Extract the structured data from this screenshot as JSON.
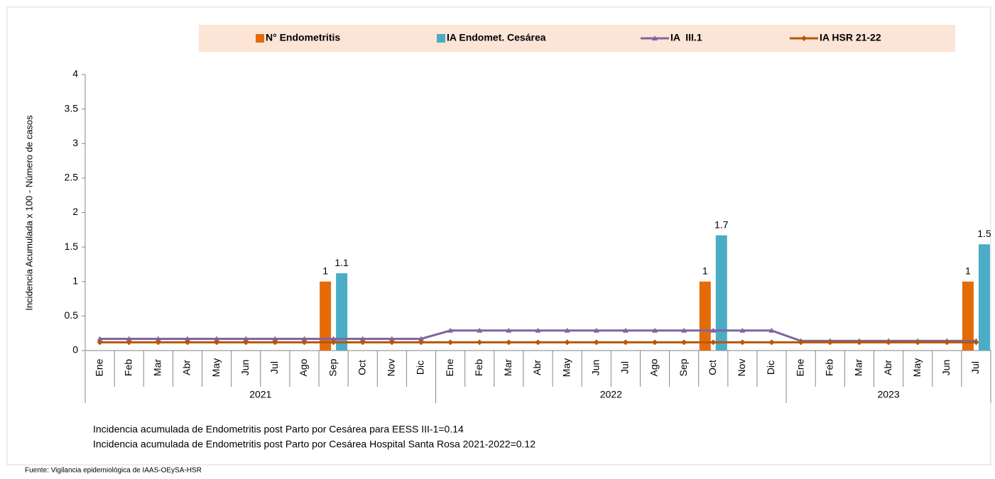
{
  "chart_data": {
    "type": "bar_line",
    "ylabel": "Incidencia Acumulada x 100 - Número de casos",
    "groups": [
      {
        "name": "2021",
        "months": [
          "Ene",
          "Feb",
          "Mar",
          "Abr",
          "May",
          "Jun",
          "Jul",
          "Ago",
          "Sep",
          "Oct",
          "Nov",
          "Dic"
        ]
      },
      {
        "name": "2022",
        "months": [
          "Ene",
          "Feb",
          "Mar",
          "Abr",
          "May",
          "Jun",
          "Jul",
          "Ago",
          "Sep",
          "Oct",
          "Nov",
          "Dic"
        ]
      },
      {
        "name": "2023",
        "months": [
          "Ene",
          "Feb",
          "Mar",
          "Abr",
          "May",
          "Jun",
          "Jul"
        ]
      }
    ],
    "series": [
      {
        "name": "N° Endometritis",
        "kind": "bar",
        "color": "#e36c09",
        "values": [
          null,
          null,
          null,
          null,
          null,
          null,
          null,
          null,
          1,
          null,
          null,
          null,
          null,
          null,
          null,
          null,
          null,
          null,
          null,
          null,
          null,
          1,
          null,
          null,
          null,
          null,
          null,
          null,
          null,
          null,
          1
        ]
      },
      {
        "name": "IA Endomet. Cesárea",
        "kind": "bar",
        "color": "#4bacc6",
        "values": [
          null,
          null,
          null,
          null,
          null,
          null,
          null,
          null,
          1.12,
          null,
          null,
          null,
          null,
          null,
          null,
          null,
          null,
          null,
          null,
          null,
          null,
          1.67,
          null,
          null,
          null,
          null,
          null,
          null,
          null,
          null,
          1.54
        ],
        "value_labels": [
          null,
          null,
          null,
          null,
          null,
          null,
          null,
          null,
          "1.1",
          null,
          null,
          null,
          null,
          null,
          null,
          null,
          null,
          null,
          null,
          null,
          null,
          "1.7",
          null,
          null,
          null,
          null,
          null,
          null,
          null,
          null,
          "1.5"
        ]
      },
      {
        "name": "IA  III.1",
        "kind": "line",
        "marker": "triangle",
        "color": "#8064a2",
        "values": [
          0.17,
          0.17,
          0.17,
          0.17,
          0.17,
          0.17,
          0.17,
          0.17,
          0.17,
          0.17,
          0.17,
          0.17,
          0.29,
          0.29,
          0.29,
          0.29,
          0.29,
          0.29,
          0.29,
          0.29,
          0.29,
          0.29,
          0.29,
          0.29,
          0.14,
          0.14,
          0.14,
          0.14,
          0.14,
          0.14,
          0.14
        ]
      },
      {
        "name": "IA HSR 21-22",
        "kind": "line",
        "marker": "diamond",
        "color": "#b65708",
        "values": [
          0.12,
          0.12,
          0.12,
          0.12,
          0.12,
          0.12,
          0.12,
          0.12,
          0.12,
          0.12,
          0.12,
          0.12,
          0.12,
          0.12,
          0.12,
          0.12,
          0.12,
          0.12,
          0.12,
          0.12,
          0.12,
          0.12,
          0.12,
          0.12,
          0.12,
          0.12,
          0.12,
          0.12,
          0.12,
          0.12,
          0.12
        ]
      }
    ],
    "ylim": [
      0,
      4
    ],
    "yticks": [
      0,
      0.5,
      1,
      1.5,
      2,
      2.5,
      3,
      3.5,
      4
    ],
    "notes": [
      "Incidencia acumulada de Endometritis post Parto por Cesárea para EESS III-1=0.14",
      "Incidencia acumulada de Endometritis post Parto por Cesárea Hospital Santa Rosa 2021-2022=0.12"
    ],
    "source": "Fuente: Vigilancia epidemiológica de IAAS-OEySA-HSR"
  }
}
